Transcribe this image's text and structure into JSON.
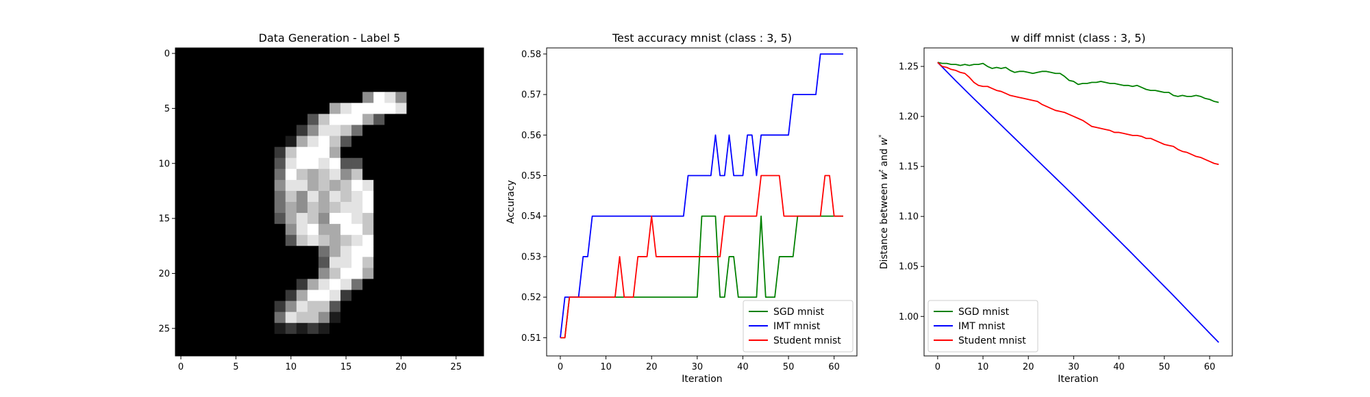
{
  "chart_data": [
    {
      "type": "heatmap",
      "title": "Data Generation - Label 5",
      "xticks": [
        0,
        5,
        10,
        15,
        20,
        25
      ],
      "yticks": [
        0,
        5,
        10,
        15,
        20,
        25
      ],
      "xlim": [
        -0.5,
        27.5
      ],
      "ylim": [
        27.5,
        -0.5
      ],
      "colormap": "gray",
      "vmin": 0,
      "vmax": 255,
      "shape": [
        28,
        28
      ],
      "pixels": [
        "0000000000000000000000000000",
        "0000000000000000000000000000",
        "0000000000000000000000000000",
        "0000000000000000000000000000",
        "0000000000000000059850000000",
        "0000000000000068999980000000",
        "0000000000003799963000000000",
        "0000000000025887400000000000",
        "0000000000168973000000000000",
        "0000000002799960000000000000",
        "0000000003899893300000000000",
        "0000000004976785700000000000",
        "0000000005886767980000000000",
        "0000000004758687890000000000",
        "0000000004657678890000000000",
        "0000000003687599870000000000",
        "0000000000589669970000000000",
        "0000000000378767890000000000",
        "0000000000000468990000000000",
        "0000000000000388970000000000",
        "0000000000000579960000000000",
        "0000000000026898400000000000",
        "0000000000269982000000000000",
        "0000000002587730000000000000",
        "0000000004877510000000000000",
        "0000000001212100000000000000",
        "0000000000000000000000000000",
        "0000000000000000000000000000"
      ]
    },
    {
      "type": "line",
      "title": "Test accuracy mnist (class : 3, 5)",
      "xlabel": "Iteration",
      "ylabel": "Accuracy",
      "xlim": [
        -3,
        65
      ],
      "ylim": [
        0.5055,
        0.5815
      ],
      "xticks": [
        0,
        10,
        20,
        30,
        40,
        50,
        60
      ],
      "yticks": [
        0.51,
        0.52,
        0.53,
        0.54,
        0.55,
        0.56,
        0.57,
        0.58
      ],
      "legend_position": "lower-right",
      "x": [
        0,
        1,
        2,
        3,
        4,
        5,
        6,
        7,
        8,
        9,
        10,
        11,
        12,
        13,
        14,
        15,
        16,
        17,
        18,
        19,
        20,
        21,
        22,
        23,
        24,
        25,
        26,
        27,
        28,
        29,
        30,
        31,
        32,
        33,
        34,
        35,
        36,
        37,
        38,
        39,
        40,
        41,
        42,
        43,
        44,
        45,
        46,
        47,
        48,
        49,
        50,
        51,
        52,
        53,
        54,
        55,
        56,
        57,
        58,
        59,
        60,
        61,
        62
      ],
      "series": [
        {
          "name": "SGD mnist",
          "color": "#008000",
          "values": [
            0.51,
            0.51,
            0.52,
            0.52,
            0.52,
            0.52,
            0.52,
            0.52,
            0.52,
            0.52,
            0.52,
            0.52,
            0.52,
            0.52,
            0.52,
            0.52,
            0.52,
            0.52,
            0.52,
            0.52,
            0.52,
            0.52,
            0.52,
            0.52,
            0.52,
            0.52,
            0.52,
            0.52,
            0.52,
            0.52,
            0.52,
            0.54,
            0.54,
            0.54,
            0.54,
            0.52,
            0.52,
            0.53,
            0.53,
            0.52,
            0.52,
            0.52,
            0.52,
            0.52,
            0.54,
            0.52,
            0.52,
            0.52,
            0.53,
            0.53,
            0.53,
            0.53,
            0.54,
            0.54,
            0.54,
            0.54,
            0.54,
            0.54,
            0.54,
            0.54,
            0.54,
            0.54,
            0.54
          ]
        },
        {
          "name": "IMT mnist",
          "color": "#0000ff",
          "values": [
            0.51,
            0.52,
            0.52,
            0.52,
            0.52,
            0.53,
            0.53,
            0.54,
            0.54,
            0.54,
            0.54,
            0.54,
            0.54,
            0.54,
            0.54,
            0.54,
            0.54,
            0.54,
            0.54,
            0.54,
            0.54,
            0.54,
            0.54,
            0.54,
            0.54,
            0.54,
            0.54,
            0.54,
            0.55,
            0.55,
            0.55,
            0.55,
            0.55,
            0.55,
            0.56,
            0.55,
            0.55,
            0.56,
            0.55,
            0.55,
            0.55,
            0.56,
            0.56,
            0.55,
            0.56,
            0.56,
            0.56,
            0.56,
            0.56,
            0.56,
            0.56,
            0.57,
            0.57,
            0.57,
            0.57,
            0.57,
            0.57,
            0.58,
            0.58,
            0.58,
            0.58,
            0.58,
            0.58
          ]
        },
        {
          "name": "Student mnist",
          "color": "#ff0000",
          "values": [
            0.51,
            0.51,
            0.52,
            0.52,
            0.52,
            0.52,
            0.52,
            0.52,
            0.52,
            0.52,
            0.52,
            0.52,
            0.52,
            0.53,
            0.52,
            0.52,
            0.52,
            0.53,
            0.53,
            0.53,
            0.54,
            0.53,
            0.53,
            0.53,
            0.53,
            0.53,
            0.53,
            0.53,
            0.53,
            0.53,
            0.53,
            0.53,
            0.53,
            0.53,
            0.53,
            0.53,
            0.54,
            0.54,
            0.54,
            0.54,
            0.54,
            0.54,
            0.54,
            0.54,
            0.55,
            0.55,
            0.55,
            0.55,
            0.55,
            0.54,
            0.54,
            0.54,
            0.54,
            0.54,
            0.54,
            0.54,
            0.54,
            0.54,
            0.55,
            0.55,
            0.54,
            0.54,
            0.54
          ]
        }
      ]
    },
    {
      "type": "line",
      "title": "w diff mnist (class : 3, 5)",
      "xlabel": "Iteration",
      "ylabel": "Distance between w^t and w^*",
      "xlim": [
        -3,
        65
      ],
      "ylim": [
        0.9605,
        1.2685
      ],
      "xticks": [
        0,
        10,
        20,
        30,
        40,
        50,
        60
      ],
      "yticks": [
        1.0,
        1.05,
        1.1,
        1.15,
        1.2,
        1.25
      ],
      "legend_position": "lower-left",
      "x": [
        0,
        1,
        2,
        3,
        4,
        5,
        6,
        7,
        8,
        9,
        10,
        11,
        12,
        13,
        14,
        15,
        16,
        17,
        18,
        19,
        20,
        21,
        22,
        23,
        24,
        25,
        26,
        27,
        28,
        29,
        30,
        31,
        32,
        33,
        34,
        35,
        36,
        37,
        38,
        39,
        40,
        41,
        42,
        43,
        44,
        45,
        46,
        47,
        48,
        49,
        50,
        51,
        52,
        53,
        54,
        55,
        56,
        57,
        58,
        59,
        60,
        61,
        62
      ],
      "series": [
        {
          "name": "SGD mnist",
          "color": "#008000",
          "values": [
            1.254,
            1.253,
            1.253,
            1.252,
            1.252,
            1.251,
            1.252,
            1.251,
            1.252,
            1.252,
            1.253,
            1.25,
            1.248,
            1.249,
            1.248,
            1.249,
            1.246,
            1.244,
            1.245,
            1.245,
            1.244,
            1.243,
            1.244,
            1.245,
            1.245,
            1.244,
            1.243,
            1.243,
            1.24,
            1.236,
            1.235,
            1.232,
            1.233,
            1.233,
            1.234,
            1.234,
            1.235,
            1.234,
            1.233,
            1.233,
            1.232,
            1.231,
            1.231,
            1.23,
            1.231,
            1.229,
            1.227,
            1.226,
            1.226,
            1.225,
            1.224,
            1.224,
            1.221,
            1.22,
            1.221,
            1.22,
            1.22,
            1.221,
            1.22,
            1.218,
            1.217,
            1.215,
            1.214
          ]
        },
        {
          "name": "IMT mnist",
          "color": "#0000ff",
          "values": [
            1.254,
            1.2494,
            1.2448,
            1.2402,
            1.2356,
            1.2311,
            1.2266,
            1.2221,
            1.2177,
            1.2133,
            1.2089,
            1.2045,
            1.2001,
            1.1957,
            1.1913,
            1.1869,
            1.1825,
            1.1781,
            1.1737,
            1.1693,
            1.1649,
            1.1605,
            1.1561,
            1.1517,
            1.1473,
            1.1429,
            1.1385,
            1.1341,
            1.1297,
            1.1253,
            1.1209,
            1.1164,
            1.1119,
            1.1074,
            1.1029,
            1.0984,
            1.0939,
            1.0894,
            1.0849,
            1.0804,
            1.0759,
            1.0714,
            1.0669,
            1.0623,
            1.0577,
            1.0531,
            1.0485,
            1.0439,
            1.0393,
            1.0347,
            1.0301,
            1.0255,
            1.0209,
            1.0162,
            1.0115,
            1.0068,
            1.0021,
            0.9974,
            0.9927,
            0.988,
            0.9833,
            0.9786,
            0.974
          ]
        },
        {
          "name": "Student mnist",
          "color": "#ff0000",
          "values": [
            1.254,
            1.25,
            1.249,
            1.247,
            1.246,
            1.244,
            1.243,
            1.239,
            1.234,
            1.231,
            1.23,
            1.23,
            1.228,
            1.226,
            1.225,
            1.223,
            1.221,
            1.22,
            1.219,
            1.218,
            1.217,
            1.216,
            1.215,
            1.212,
            1.21,
            1.208,
            1.206,
            1.205,
            1.204,
            1.202,
            1.2,
            1.198,
            1.196,
            1.193,
            1.19,
            1.189,
            1.188,
            1.187,
            1.186,
            1.184,
            1.184,
            1.183,
            1.182,
            1.181,
            1.181,
            1.18,
            1.178,
            1.178,
            1.176,
            1.174,
            1.172,
            1.171,
            1.17,
            1.167,
            1.165,
            1.164,
            1.162,
            1.16,
            1.159,
            1.157,
            1.155,
            1.153,
            1.152
          ]
        }
      ]
    }
  ]
}
